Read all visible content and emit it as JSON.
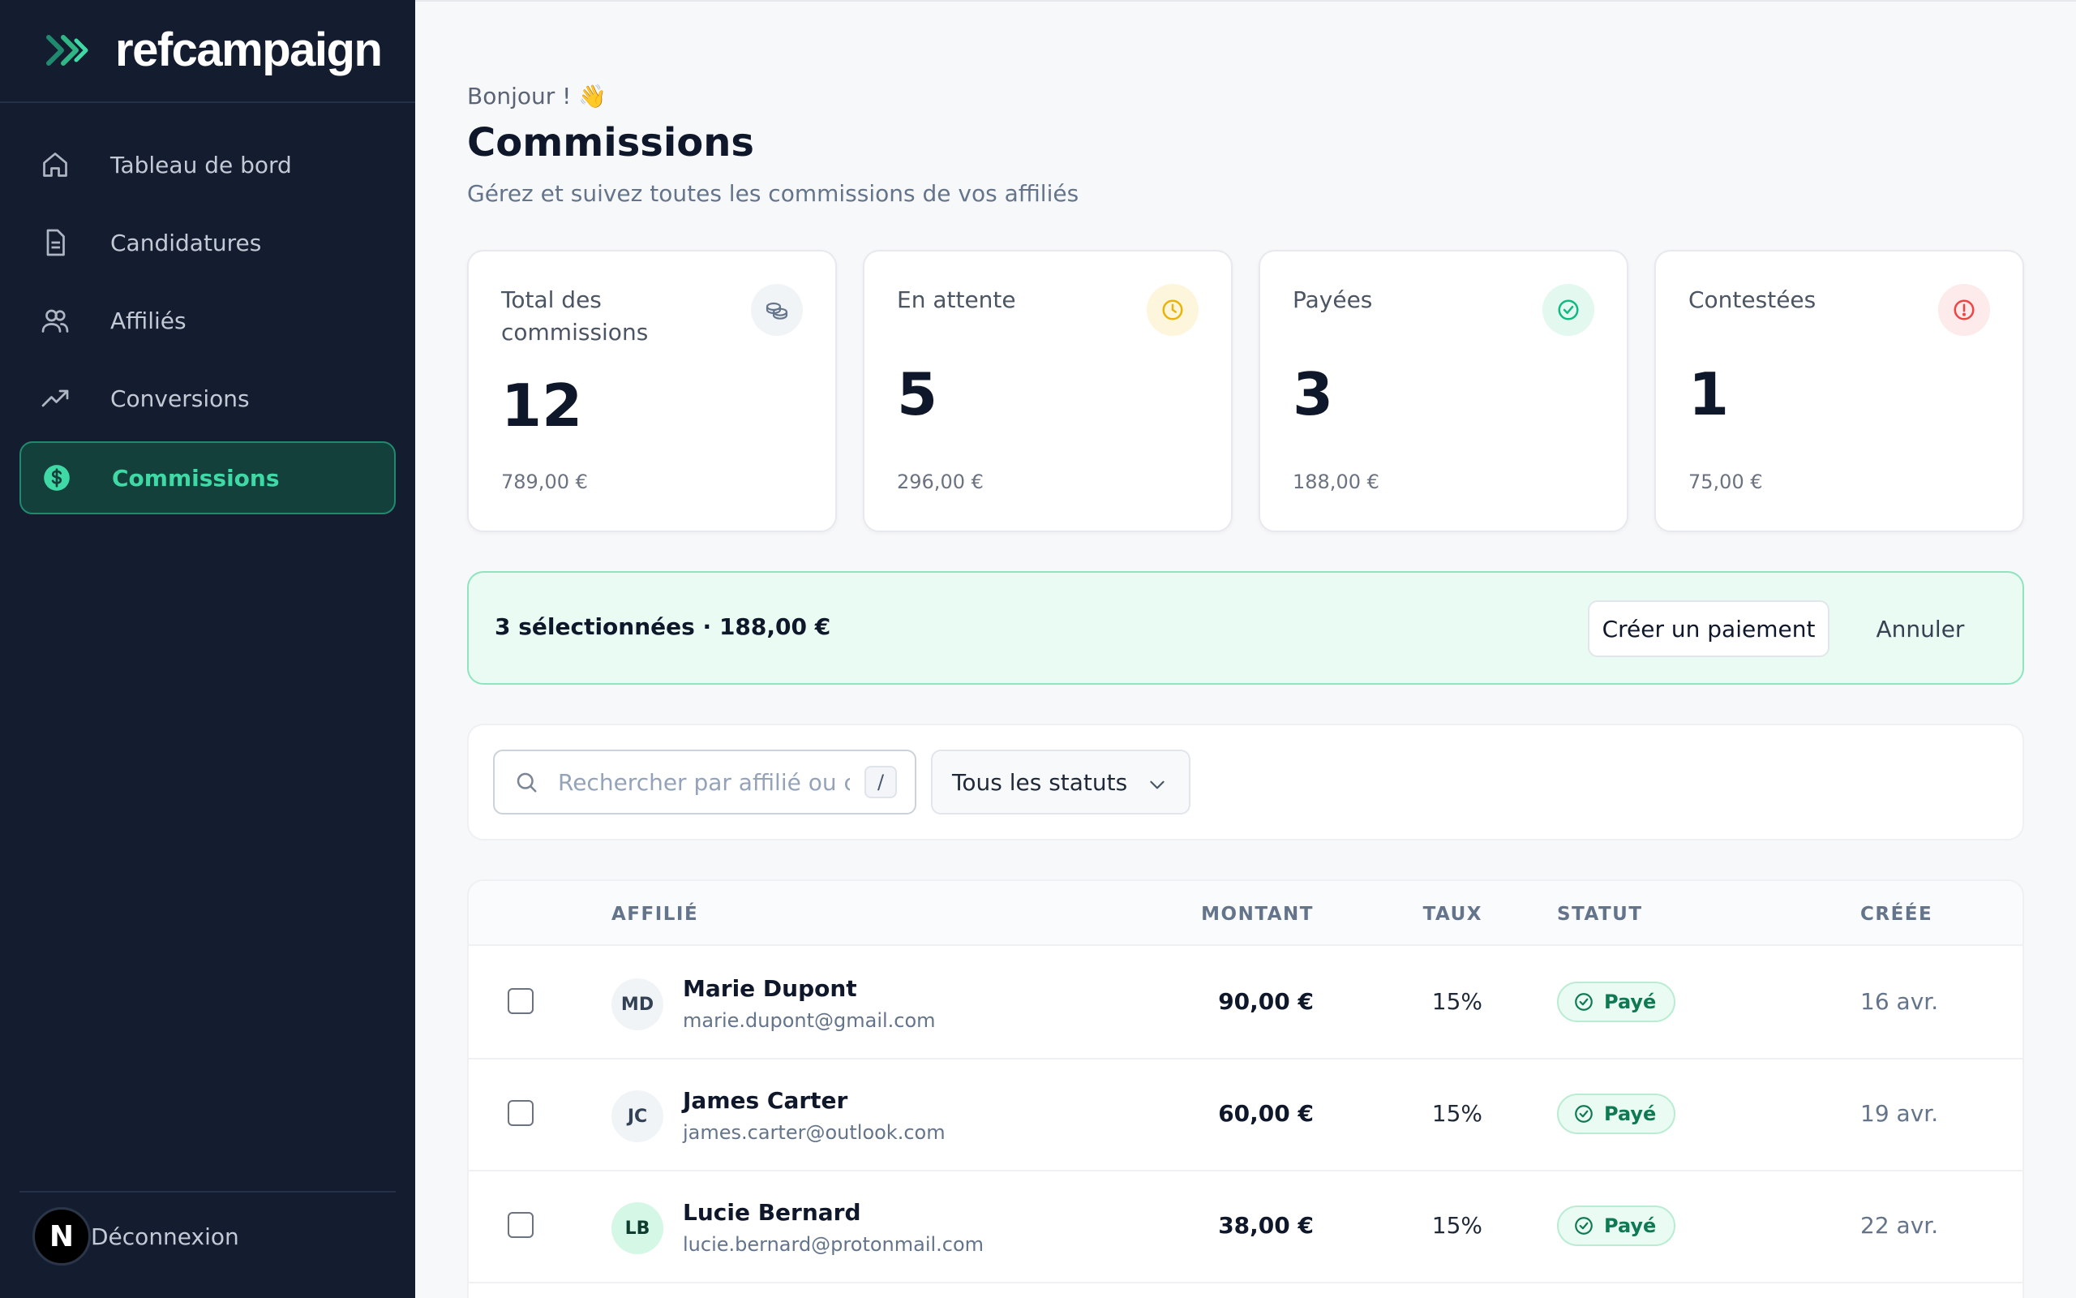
{
  "brand": {
    "name": "refcampaign"
  },
  "sidebar": {
    "items": [
      {
        "label": "Tableau de bord",
        "icon": "home-icon"
      },
      {
        "label": "Candidatures",
        "icon": "document-icon"
      },
      {
        "label": "Affiliés",
        "icon": "users-icon"
      },
      {
        "label": "Conversions",
        "icon": "trending-up-icon"
      },
      {
        "label": "Commissions",
        "icon": "dollar-circle-icon",
        "active": true
      }
    ],
    "logout_label": "Déconnexion",
    "avatar_letter": "N"
  },
  "header": {
    "greeting": "Bonjour ! 👋",
    "title": "Commissions",
    "subtitle": "Gérez et suivez toutes les commissions de vos affiliés"
  },
  "stats": [
    {
      "label": "Total des commissions",
      "value": "12",
      "amount": "789,00 €",
      "icon": "coins-icon",
      "color": "#64748b"
    },
    {
      "label": "En attente",
      "value": "5",
      "amount": "296,00 €",
      "icon": "clock-icon",
      "color": "#eab308"
    },
    {
      "label": "Payées",
      "value": "3",
      "amount": "188,00 €",
      "icon": "check-circle-icon",
      "color": "#10b981"
    },
    {
      "label": "Contestées",
      "value": "1",
      "amount": "75,00 €",
      "icon": "alert-circle-icon",
      "color": "#ef4444"
    }
  ],
  "selection": {
    "text": "3 sélectionnées · 188,00 €",
    "create_label": "Créer un paiement",
    "cancel_label": "Annuler"
  },
  "filters": {
    "search_placeholder": "Rechercher par affilié ou c",
    "shortcut": "/",
    "status_value": "Tous les statuts"
  },
  "table": {
    "headers": {
      "affiliate": "AFFILIÉ",
      "amount": "MONTANT",
      "rate": "TAUX",
      "status": "STATUT",
      "created": "CRÉÉE"
    },
    "rows": [
      {
        "initials": "MD",
        "name": "Marie Dupont",
        "email": "marie.dupont@gmail.com",
        "amount": "90,00 €",
        "rate": "15%",
        "status": "Payé",
        "created": "16 avr."
      },
      {
        "initials": "JC",
        "name": "James Carter",
        "email": "james.carter@outlook.com",
        "amount": "60,00 €",
        "rate": "15%",
        "status": "Payé",
        "created": "19 avr."
      },
      {
        "initials": "LB",
        "name": "Lucie Bernard",
        "email": "lucie.bernard@protonmail.com",
        "amount": "38,00 €",
        "rate": "15%",
        "status": "Payé",
        "created": "22 avr."
      }
    ]
  },
  "colors": {
    "sidebar_bg": "#141d2f",
    "accent": "#3fd9a5",
    "success": "#10b981"
  }
}
